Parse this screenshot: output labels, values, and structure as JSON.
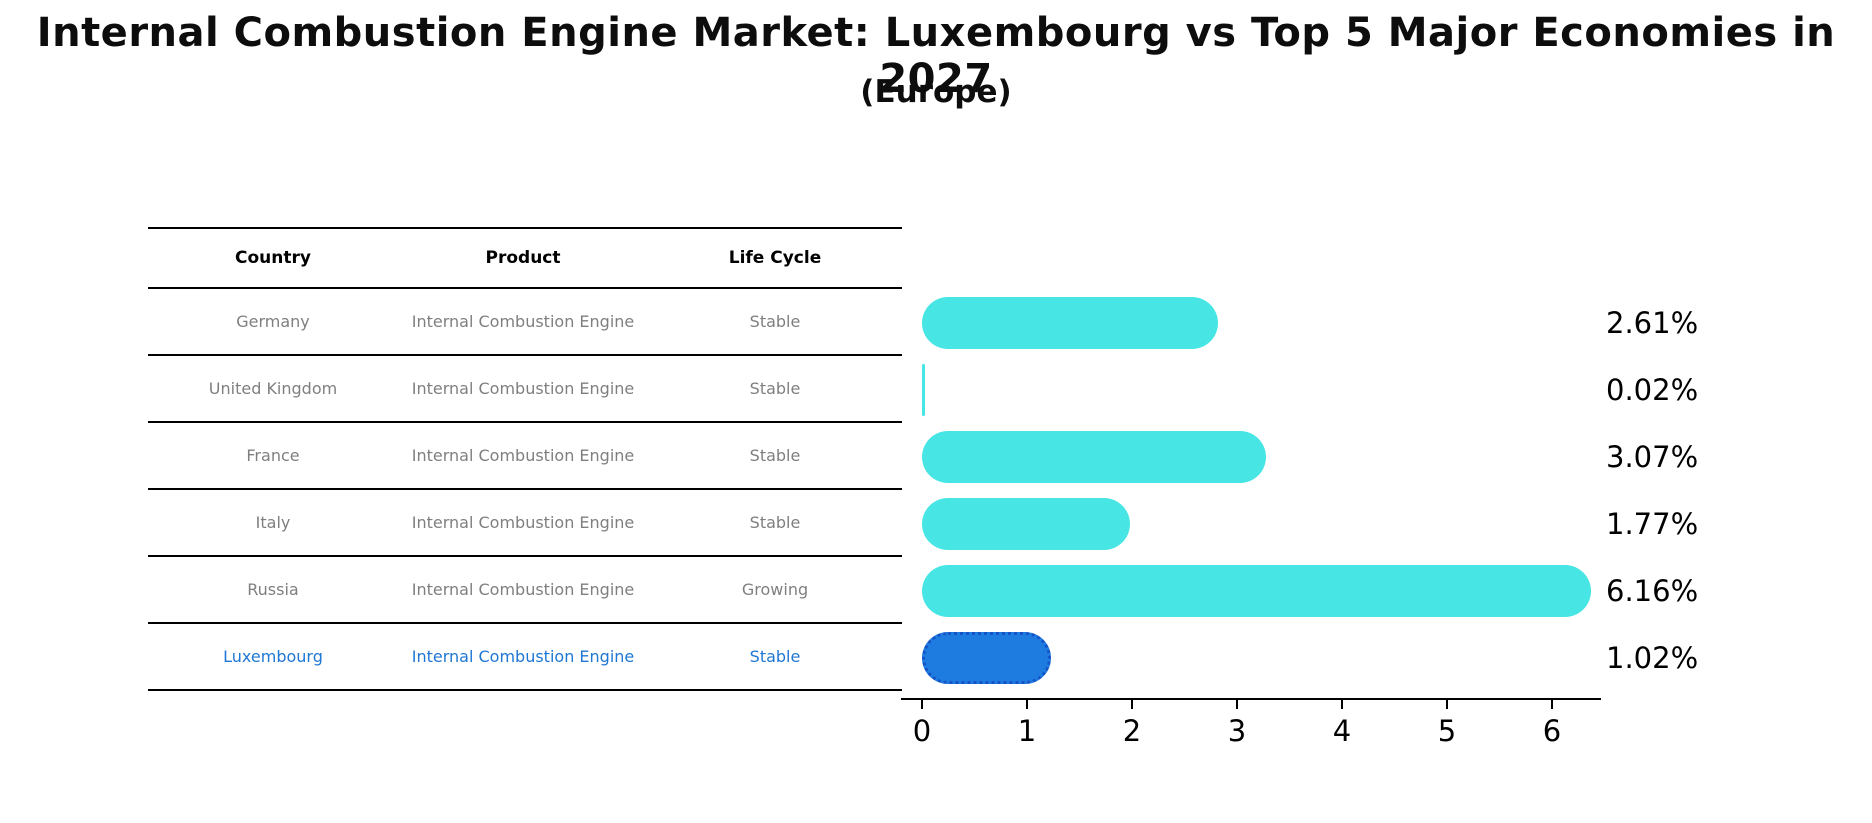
{
  "title": "Internal Combustion Engine Market: Luxembourg vs Top 5 Major Economies in 2027",
  "subtitle": "(Europe)",
  "table": {
    "headers": [
      "Country",
      "Product",
      "Life Cycle"
    ]
  },
  "chart_data": {
    "type": "bar",
    "orientation": "horizontal",
    "title": "Internal Combustion Engine Market: Luxembourg vs Top 5 Major Economies in 2027 (Europe)",
    "categories": [
      "Germany",
      "United Kingdom",
      "France",
      "Italy",
      "Russia",
      "Luxembourg"
    ],
    "values": [
      2.61,
      0.02,
      3.07,
      1.77,
      6.16,
      1.02
    ],
    "value_labels": [
      "2.61%",
      "0.02%",
      "3.07%",
      "1.77%",
      "6.16%",
      "1.02%"
    ],
    "xlim": [
      0,
      6.45
    ],
    "x_ticks": [
      "0",
      "1",
      "2",
      "3",
      "4",
      "5",
      "6"
    ],
    "grid": false,
    "legend": "none",
    "rows": [
      {
        "country": "Germany",
        "product": "Internal Combustion Engine",
        "life_cycle": "Stable",
        "value": 2.61,
        "label": "2.61%",
        "highlight": false
      },
      {
        "country": "United Kingdom",
        "product": "Internal Combustion Engine",
        "life_cycle": "Stable",
        "value": 0.02,
        "label": "0.02%",
        "highlight": false
      },
      {
        "country": "France",
        "product": "Internal Combustion Engine",
        "life_cycle": "Stable",
        "value": 3.07,
        "label": "3.07%",
        "highlight": false
      },
      {
        "country": "Italy",
        "product": "Internal Combustion Engine",
        "life_cycle": "Stable",
        "value": 1.77,
        "label": "1.77%",
        "highlight": false
      },
      {
        "country": "Russia",
        "product": "Internal Combustion Engine",
        "life_cycle": "Growing",
        "value": 6.16,
        "label": "6.16%",
        "highlight": false
      },
      {
        "country": "Luxembourg",
        "product": "Internal Combustion Engine",
        "life_cycle": "Stable",
        "value": 1.02,
        "label": "1.02%",
        "highlight": true
      }
    ],
    "colors": {
      "bar": "#48e5e5",
      "highlight_bar": "#1e7be0",
      "highlight_border": "#1453c8",
      "highlight_text": "#1f77d4",
      "row_text": "#7f7f7f",
      "header_text": "#000000",
      "axis_text": "#000000"
    }
  }
}
